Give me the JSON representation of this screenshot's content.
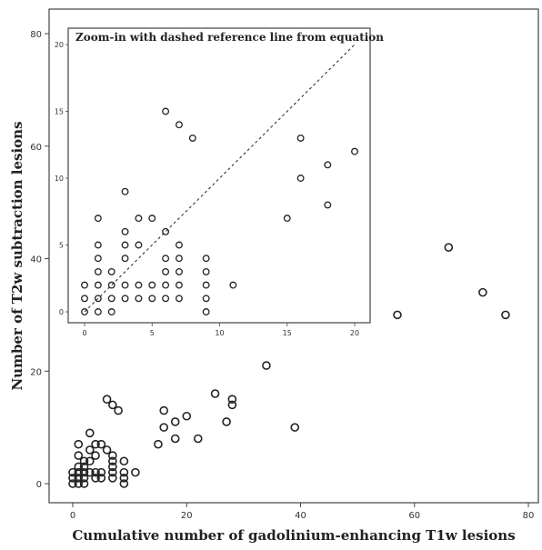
{
  "chart_data": [
    {
      "type": "scatter",
      "title": "",
      "xlabel": "Cumulative number of gadolinium-enhancing T1w lesions",
      "ylabel": "Number of T2w subtraction lesions",
      "xlim": [
        -3,
        82
      ],
      "ylim": [
        -1.5,
        82
      ],
      "xticks": [
        0,
        20,
        40,
        60,
        80
      ],
      "yticks": [
        0,
        20,
        40,
        60,
        80
      ],
      "grid": false,
      "marker": "open-circle",
      "points": [
        [
          0,
          0
        ],
        [
          0,
          1
        ],
        [
          0,
          2
        ],
        [
          1,
          0
        ],
        [
          1,
          1
        ],
        [
          1,
          2
        ],
        [
          1,
          3
        ],
        [
          1,
          5
        ],
        [
          1,
          7
        ],
        [
          2,
          0
        ],
        [
          2,
          1
        ],
        [
          2,
          2
        ],
        [
          2,
          3
        ],
        [
          2,
          4
        ],
        [
          3,
          2
        ],
        [
          3,
          4
        ],
        [
          3,
          6
        ],
        [
          3,
          9
        ],
        [
          4,
          1
        ],
        [
          4,
          2
        ],
        [
          4,
          5
        ],
        [
          4,
          7
        ],
        [
          5,
          1
        ],
        [
          5,
          2
        ],
        [
          5,
          7
        ],
        [
          6,
          6
        ],
        [
          6,
          15
        ],
        [
          7,
          1
        ],
        [
          7,
          2
        ],
        [
          7,
          3
        ],
        [
          7,
          4
        ],
        [
          7,
          5
        ],
        [
          7,
          14
        ],
        [
          8,
          13
        ],
        [
          9,
          0
        ],
        [
          9,
          1
        ],
        [
          9,
          2
        ],
        [
          9,
          4
        ],
        [
          11,
          2
        ],
        [
          15,
          7
        ],
        [
          16,
          10
        ],
        [
          16,
          13
        ],
        [
          18,
          8
        ],
        [
          18,
          11
        ],
        [
          20,
          12
        ],
        [
          22,
          8
        ],
        [
          25,
          16
        ],
        [
          27,
          11
        ],
        [
          28,
          14
        ],
        [
          28,
          15
        ],
        [
          34,
          21
        ],
        [
          39,
          10
        ],
        [
          57,
          30
        ],
        [
          66,
          42
        ],
        [
          72,
          34
        ],
        [
          76,
          30
        ]
      ]
    },
    {
      "type": "scatter",
      "title": "Zoom-in with dashed reference line from equation",
      "xlabel": "",
      "ylabel": "",
      "xlim": [
        -1,
        21
      ],
      "ylim": [
        -1,
        21
      ],
      "xticks": [
        0,
        5,
        10,
        15,
        20
      ],
      "yticks": [
        0,
        5,
        10,
        15,
        20
      ],
      "grid": false,
      "marker": "open-circle",
      "reference_line": {
        "style": "dashed",
        "x1": 0,
        "y1": 0,
        "x2": 20,
        "y2": 20
      },
      "points": [
        [
          0,
          0
        ],
        [
          0,
          1
        ],
        [
          0,
          2
        ],
        [
          1,
          0
        ],
        [
          1,
          1
        ],
        [
          1,
          2
        ],
        [
          1,
          3
        ],
        [
          1,
          4
        ],
        [
          1,
          5
        ],
        [
          1,
          7
        ],
        [
          2,
          0
        ],
        [
          2,
          1
        ],
        [
          2,
          2
        ],
        [
          2,
          3
        ],
        [
          3,
          1
        ],
        [
          3,
          2
        ],
        [
          3,
          4
        ],
        [
          3,
          5
        ],
        [
          3,
          6
        ],
        [
          3,
          9
        ],
        [
          4,
          1
        ],
        [
          4,
          2
        ],
        [
          4,
          5
        ],
        [
          4,
          7
        ],
        [
          5,
          1
        ],
        [
          5,
          2
        ],
        [
          5,
          7
        ],
        [
          6,
          1
        ],
        [
          6,
          2
        ],
        [
          6,
          3
        ],
        [
          6,
          4
        ],
        [
          6,
          6
        ],
        [
          6,
          15
        ],
        [
          7,
          1
        ],
        [
          7,
          2
        ],
        [
          7,
          3
        ],
        [
          7,
          4
        ],
        [
          7,
          5
        ],
        [
          7,
          14
        ],
        [
          8,
          13
        ],
        [
          9,
          0
        ],
        [
          9,
          1
        ],
        [
          9,
          2
        ],
        [
          9,
          3
        ],
        [
          9,
          4
        ],
        [
          11,
          2
        ],
        [
          15,
          7
        ],
        [
          16,
          10
        ],
        [
          16,
          13
        ],
        [
          18,
          8
        ],
        [
          18,
          11
        ],
        [
          20,
          12
        ]
      ]
    }
  ]
}
